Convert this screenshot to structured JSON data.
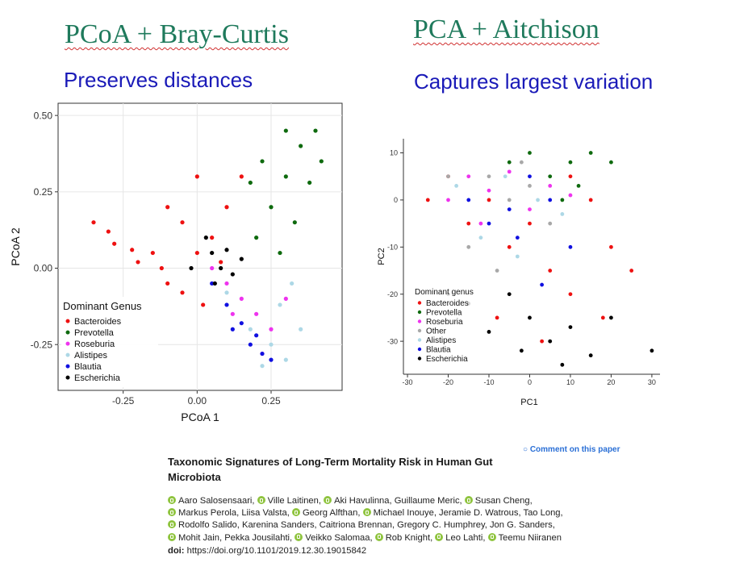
{
  "slide": {
    "left_heading": "PCoA + Bray-Curtis",
    "right_heading": "PCA + Aitchison",
    "left_subheading": "Preserves distances",
    "right_subheading": "Captures largest variation"
  },
  "colors": {
    "Bacteroides": "#ee1111",
    "Prevotella": "#0e6a0e",
    "Roseburia": "#ee33ee",
    "Other": "#a8a8a8",
    "Alistipes": "#add8e6",
    "Blautia": "#1010e0",
    "Escherichia": "#000000"
  },
  "chart_data": [
    {
      "type": "scatter",
      "title": "",
      "xlabel": "PCoA 1",
      "ylabel": "PCoA 2",
      "xlim": [
        -0.47,
        0.49
      ],
      "ylim": [
        -0.4,
        0.54
      ],
      "xticks": [
        "-0.25",
        "0.00",
        "0.25"
      ],
      "xtick_values": [
        -0.25,
        0.0,
        0.25
      ],
      "yticks": [
        "-0.25",
        "0.00",
        "0.25",
        "0.50"
      ],
      "ytick_values": [
        -0.25,
        0.0,
        0.25,
        0.5
      ],
      "grid": true,
      "legend": {
        "title": "Dominant Genus",
        "position": "bottom-left",
        "entries": [
          "Bacteroides",
          "Prevotella",
          "Roseburia",
          "Alistipes",
          "Blautia",
          "Escherichia"
        ]
      },
      "series": [
        {
          "name": "Bacteroides",
          "points": [
            [
              -0.35,
              0.15
            ],
            [
              -0.3,
              0.12
            ],
            [
              -0.28,
              0.08
            ],
            [
              -0.22,
              0.06
            ],
            [
              -0.2,
              0.02
            ],
            [
              -0.15,
              0.05
            ],
            [
              -0.12,
              0.0
            ],
            [
              -0.1,
              -0.05
            ],
            [
              -0.05,
              -0.08
            ],
            [
              0.0,
              0.05
            ],
            [
              0.05,
              0.1
            ],
            [
              0.1,
              0.2
            ],
            [
              0.15,
              0.3
            ],
            [
              0.0,
              0.3
            ],
            [
              -0.1,
              0.2
            ],
            [
              -0.05,
              0.15
            ],
            [
              0.02,
              -0.12
            ],
            [
              0.08,
              0.02
            ]
          ]
        },
        {
          "name": "Prevotella",
          "points": [
            [
              0.2,
              0.1
            ],
            [
              0.25,
              0.2
            ],
            [
              0.3,
              0.3
            ],
            [
              0.35,
              0.4
            ],
            [
              0.4,
              0.45
            ],
            [
              0.3,
              0.45
            ],
            [
              0.22,
              0.35
            ],
            [
              0.38,
              0.28
            ],
            [
              0.33,
              0.15
            ],
            [
              0.28,
              0.05
            ],
            [
              0.42,
              0.35
            ],
            [
              0.18,
              0.28
            ]
          ]
        },
        {
          "name": "Roseburia",
          "points": [
            [
              0.05,
              0.0
            ],
            [
              0.1,
              -0.05
            ],
            [
              0.15,
              -0.1
            ],
            [
              0.2,
              -0.15
            ],
            [
              0.25,
              -0.2
            ],
            [
              0.3,
              -0.1
            ],
            [
              0.12,
              -0.15
            ],
            [
              0.22,
              -0.28
            ]
          ]
        },
        {
          "name": "Alistipes",
          "points": [
            [
              0.1,
              -0.08
            ],
            [
              0.18,
              -0.2
            ],
            [
              0.25,
              -0.25
            ],
            [
              0.3,
              -0.3
            ],
            [
              0.35,
              -0.2
            ],
            [
              0.28,
              -0.12
            ],
            [
              0.22,
              -0.32
            ],
            [
              0.32,
              -0.05
            ]
          ]
        },
        {
          "name": "Blautia",
          "points": [
            [
              0.05,
              -0.05
            ],
            [
              0.1,
              -0.12
            ],
            [
              0.15,
              -0.18
            ],
            [
              0.2,
              -0.22
            ],
            [
              0.22,
              -0.28
            ],
            [
              0.25,
              -0.3
            ],
            [
              0.12,
              -0.2
            ],
            [
              0.18,
              -0.25
            ]
          ]
        },
        {
          "name": "Escherichia",
          "points": [
            [
              0.05,
              0.05
            ],
            [
              0.1,
              0.06
            ],
            [
              0.08,
              0.0
            ],
            [
              0.12,
              -0.02
            ],
            [
              0.06,
              -0.05
            ],
            [
              0.15,
              0.03
            ],
            [
              -0.02,
              0.0
            ],
            [
              0.03,
              0.1
            ]
          ]
        }
      ]
    },
    {
      "type": "scatter",
      "title": "",
      "xlabel": "PC1",
      "ylabel": "PC2",
      "xlim": [
        -31,
        32
      ],
      "ylim": [
        -37,
        13
      ],
      "xticks": [
        "-30",
        "-20",
        "-10",
        "0",
        "10",
        "20",
        "30"
      ],
      "xtick_values": [
        -30,
        -20,
        -10,
        0,
        10,
        20,
        30
      ],
      "yticks": [
        "10",
        "0",
        "-10",
        "-20",
        "-30"
      ],
      "ytick_values": [
        10,
        0,
        -10,
        -20,
        -30
      ],
      "grid": false,
      "legend": {
        "title": "Dominant genus",
        "position": "bottom-left",
        "entries": [
          "Bacteroides",
          "Prevotella",
          "Roseburia",
          "Other",
          "Alistipes",
          "Blautia",
          "Escherichia"
        ]
      },
      "series": [
        {
          "name": "Bacteroides",
          "points": [
            [
              -20,
              5
            ],
            [
              -15,
              -5
            ],
            [
              -10,
              0
            ],
            [
              -5,
              -10
            ],
            [
              0,
              -5
            ],
            [
              5,
              -15
            ],
            [
              10,
              -20
            ],
            [
              15,
              0
            ],
            [
              20,
              -10
            ],
            [
              25,
              -15
            ],
            [
              -8,
              -25
            ],
            [
              3,
              -30
            ],
            [
              18,
              -25
            ],
            [
              -25,
              0
            ],
            [
              10,
              5
            ]
          ]
        },
        {
          "name": "Prevotella",
          "points": [
            [
              5,
              5
            ],
            [
              10,
              8
            ],
            [
              15,
              10
            ],
            [
              0,
              10
            ],
            [
              -5,
              8
            ],
            [
              12,
              3
            ],
            [
              20,
              8
            ],
            [
              8,
              0
            ]
          ]
        },
        {
          "name": "Roseburia",
          "points": [
            [
              -15,
              5
            ],
            [
              -10,
              2
            ],
            [
              -5,
              6
            ],
            [
              0,
              -2
            ],
            [
              5,
              3
            ],
            [
              10,
              1
            ],
            [
              -20,
              0
            ],
            [
              -12,
              -5
            ]
          ]
        },
        {
          "name": "Other",
          "points": [
            [
              -10,
              5
            ],
            [
              -5,
              0
            ],
            [
              0,
              3
            ],
            [
              -15,
              -10
            ],
            [
              5,
              -5
            ],
            [
              -8,
              -15
            ],
            [
              -20,
              5
            ],
            [
              -2,
              8
            ]
          ]
        },
        {
          "name": "Alistipes",
          "points": [
            [
              -12,
              -8
            ],
            [
              -6,
              5
            ],
            [
              2,
              0
            ],
            [
              8,
              -3
            ],
            [
              -18,
              3
            ],
            [
              -3,
              -12
            ]
          ]
        },
        {
          "name": "Blautia",
          "points": [
            [
              -10,
              -5
            ],
            [
              -5,
              -2
            ],
            [
              0,
              5
            ],
            [
              5,
              0
            ],
            [
              -3,
              -8
            ],
            [
              10,
              -10
            ],
            [
              -15,
              0
            ],
            [
              3,
              -18
            ]
          ]
        },
        {
          "name": "Escherichia",
          "points": [
            [
              -15,
              -22
            ],
            [
              -10,
              -28
            ],
            [
              -5,
              -20
            ],
            [
              0,
              -25
            ],
            [
              5,
              -30
            ],
            [
              10,
              -27
            ],
            [
              15,
              -33
            ],
            [
              20,
              -25
            ],
            [
              -20,
              -20
            ],
            [
              30,
              -32
            ],
            [
              8,
              -35
            ],
            [
              -2,
              -32
            ]
          ]
        }
      ]
    }
  ],
  "paper": {
    "comment_link": "Comment on this paper",
    "title": "Taxonomic Signatures of Long-Term Mortality Risk in Human Gut Microbiota",
    "author_lines": [
      [
        "Aaro Salosensaari,",
        "Ville Laitinen,",
        "Aki Havulinna, Guillaume Meric,",
        "Susan Cheng,"
      ],
      [
        "Markus Perola, Liisa Valsta,",
        "Georg Alfthan,",
        "Michael Inouye, Jeramie D. Watrous, Tao Long,"
      ],
      [
        "Rodolfo Salido, Karenina Sanders, Caitriona Brennan, Gregory C. Humphrey, Jon G. Sanders,"
      ],
      [
        "Mohit Jain, Pekka Jousilahti,",
        "Veikko Salomaa,",
        "Rob Knight,",
        "Leo Lahti,",
        "Teemu Niiranen"
      ]
    ],
    "doi_label": "doi:",
    "doi_value": "https://doi.org/10.1101/2019.12.30.19015842"
  }
}
